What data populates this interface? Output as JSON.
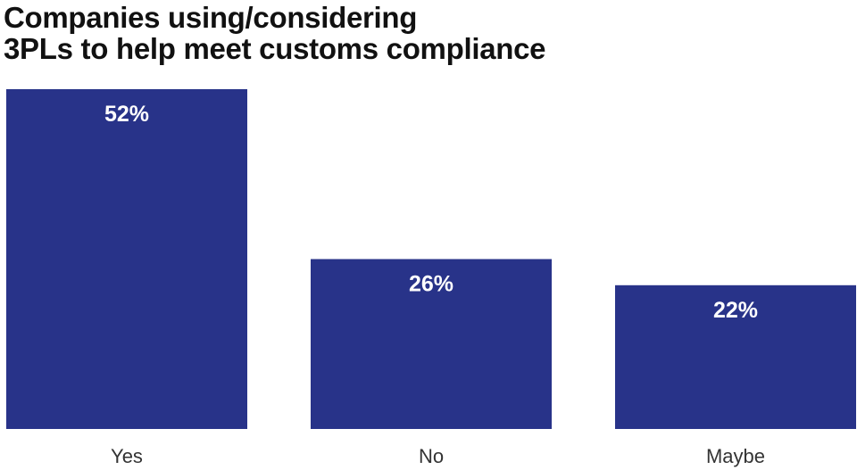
{
  "chart_data": {
    "type": "bar",
    "title": "Companies using/considering 3PLs to help meet customs compliance",
    "title_lines": [
      "Companies using/considering",
      "3PLs to help meet customs compliance"
    ],
    "categories": [
      "Yes",
      "No",
      "Maybe"
    ],
    "values": [
      52,
      26,
      22
    ],
    "value_labels": [
      "52%",
      "26%",
      "22%"
    ],
    "xlabel": "",
    "ylabel": "",
    "ylim": [
      0,
      52
    ],
    "grid": false,
    "legend": "none",
    "bar_color": "#283389"
  }
}
